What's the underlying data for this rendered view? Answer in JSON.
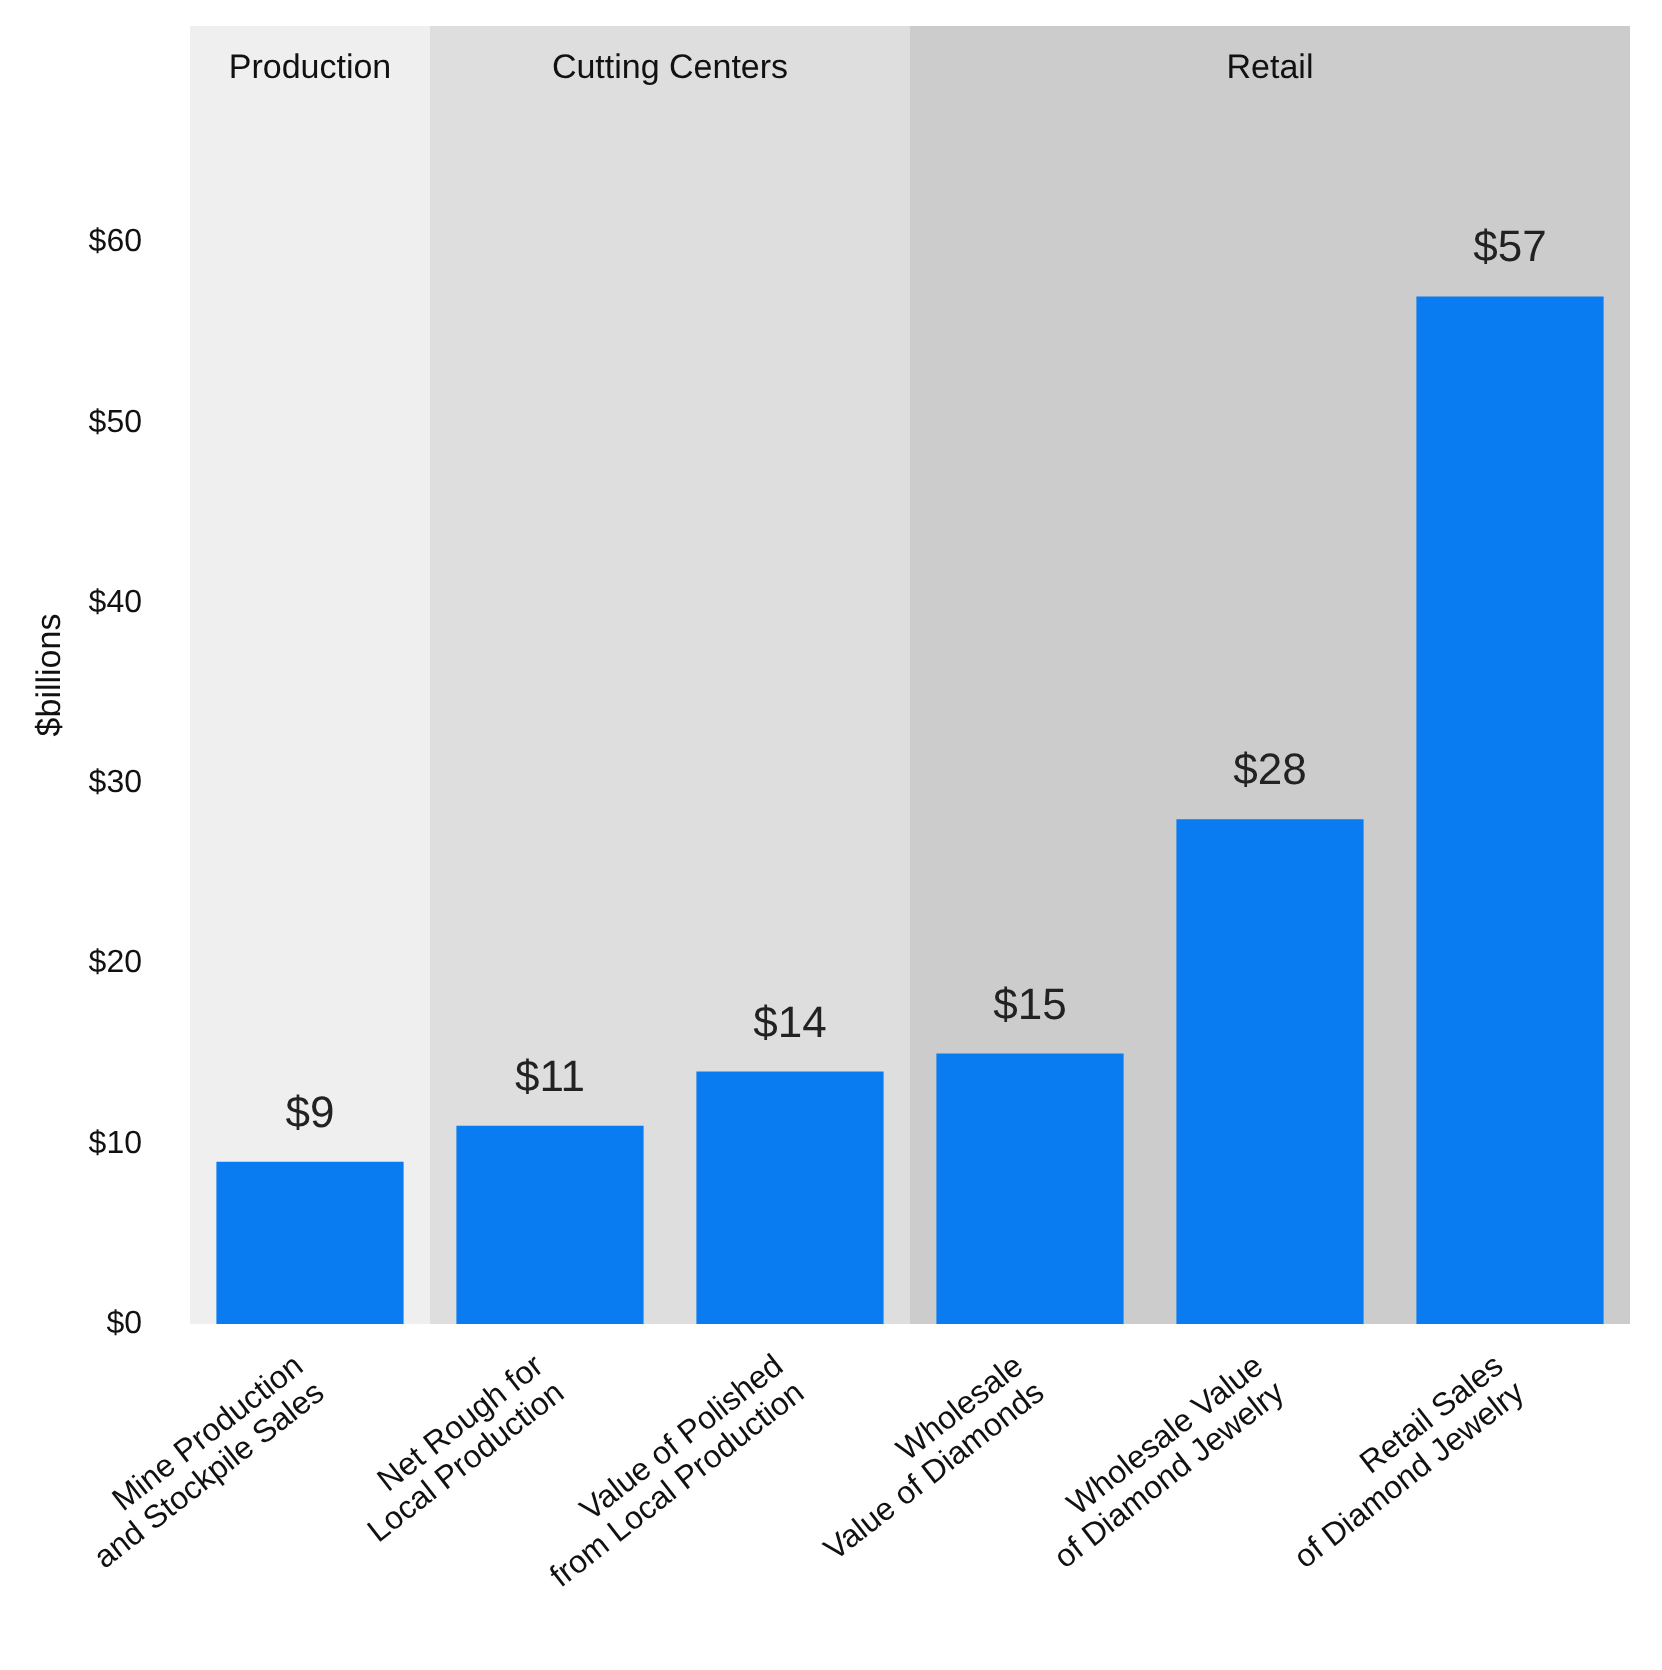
{
  "chart_data": {
    "type": "bar",
    "ylabel": "$billions",
    "categories": [
      "Mine Production\nand Stockpile Sales",
      "Net Rough for\nLocal Production",
      "Value of Polished\nfrom Local Production",
      "Wholesale\nValue of Diamonds",
      "Wholesale Value\nof Diamond Jewelry",
      "Retail Sales\nof Diamond Jewelry"
    ],
    "values": [
      9,
      11,
      14,
      15,
      28,
      57
    ],
    "value_labels": [
      "$9",
      "$11",
      "$14",
      "$15",
      "$28",
      "$57"
    ],
    "color": "#0a7cf2",
    "ylim": [
      0,
      72
    ],
    "yticks": [
      {
        "value": 0,
        "label": "$0"
      },
      {
        "value": 10,
        "label": "$10"
      },
      {
        "value": 20,
        "label": "$20"
      },
      {
        "value": 30,
        "label": "$30"
      },
      {
        "value": 40,
        "label": "$40"
      },
      {
        "value": 50,
        "label": "$50"
      },
      {
        "value": 60,
        "label": "$60"
      }
    ],
    "bands": [
      {
        "axis": "x",
        "from": "Mine Production\nand Stockpile Sales",
        "to": "Mine Production\nand Stockpile Sales",
        "label": "Production",
        "color": "#efefef"
      },
      {
        "axis": "x",
        "from": "Net Rough for\nLocal Production",
        "to": "Value of Polished\nfrom Local Production",
        "label": "Cutting Centers",
        "color": "#dedede"
      },
      {
        "axis": "x",
        "from": "Wholesale\nValue of Diamonds",
        "to": "Retail Sales\nof Diamond Jewelry",
        "label": "Retail",
        "color": "#cccccc"
      }
    ]
  }
}
